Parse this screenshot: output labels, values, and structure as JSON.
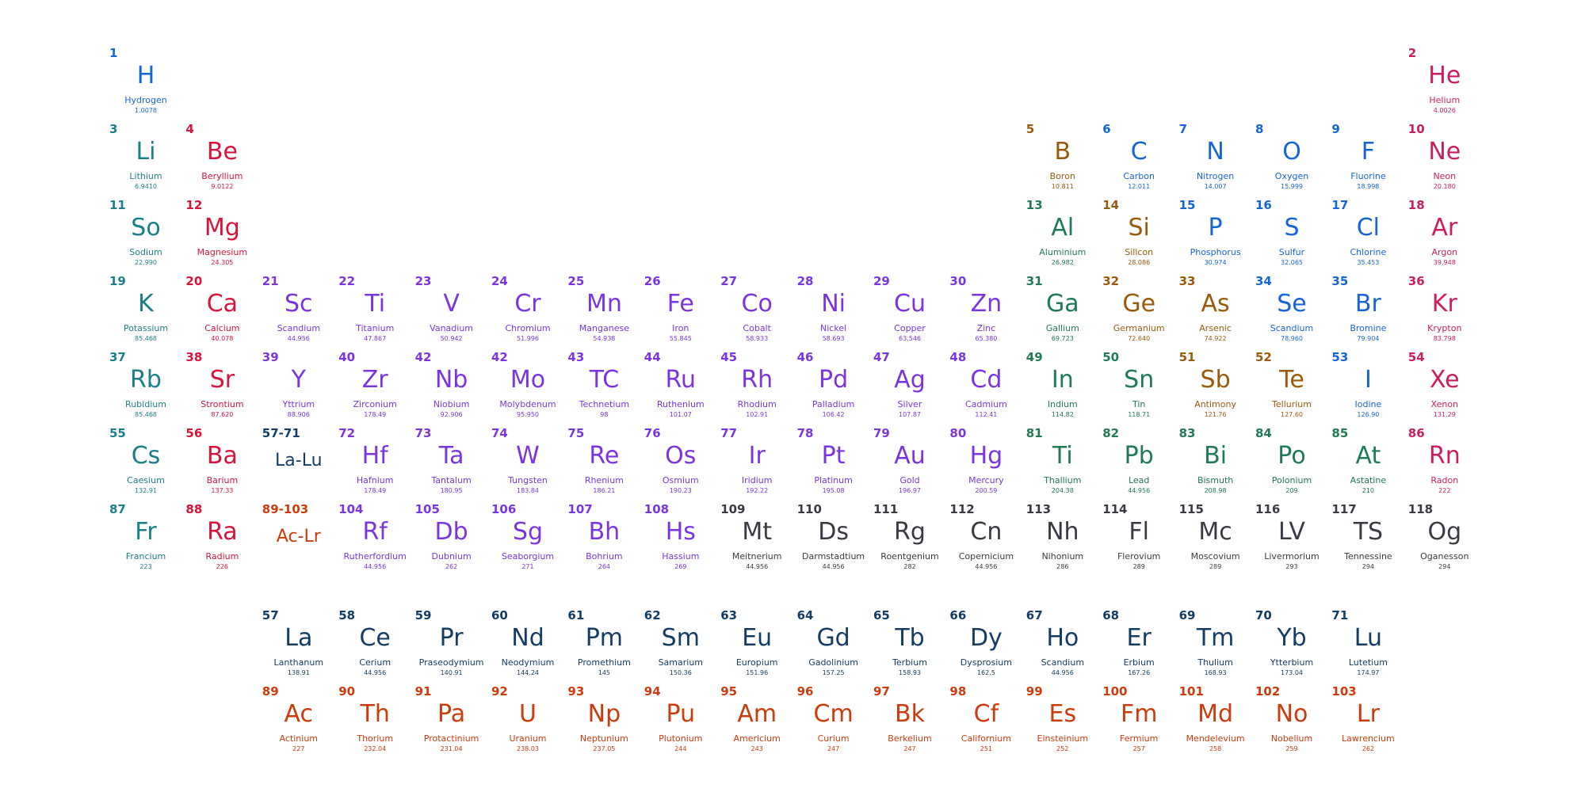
{
  "colors": {
    "alkali": "#1b7f8a",
    "alkaline": "#d6153c",
    "transition": "#7b35e0",
    "post_transition": "#1f7a55",
    "metalloid": "#9a5a0c",
    "nonmetal": "#1565d8",
    "noble": "#cc1e5d",
    "unknown": "#3a3a44",
    "lanthanide": "#143d66",
    "actinide": "#cc3b0c",
    "placeholder_lanth": "#143d66",
    "placeholder_act": "#cc3b0c"
  },
  "elements": [
    {
      "n": "1",
      "s": "H",
      "name": "Hydrogen",
      "m": "1.0078",
      "r": 0,
      "c": 0,
      "cat": "nonmetal"
    },
    {
      "n": "2",
      "s": "He",
      "name": "Helium",
      "m": "4.0026",
      "r": 0,
      "c": 17,
      "cat": "noble"
    },
    {
      "n": "3",
      "s": "Li",
      "name": "Lithium",
      "m": "6.9410",
      "r": 1,
      "c": 0,
      "cat": "alkali"
    },
    {
      "n": "4",
      "s": "Be",
      "name": "Beryllium",
      "m": "9.0122",
      "r": 1,
      "c": 1,
      "cat": "alkaline"
    },
    {
      "n": "5",
      "s": "B",
      "name": "Boron",
      "m": "10.811",
      "r": 1,
      "c": 12,
      "cat": "metalloid"
    },
    {
      "n": "6",
      "s": "C",
      "name": "Carbon",
      "m": "12.011",
      "r": 1,
      "c": 13,
      "cat": "nonmetal"
    },
    {
      "n": "7",
      "s": "N",
      "name": "Nitrogen",
      "m": "14.007",
      "r": 1,
      "c": 14,
      "cat": "nonmetal"
    },
    {
      "n": "8",
      "s": "O",
      "name": "Oxygen",
      "m": "15.999",
      "r": 1,
      "c": 15,
      "cat": "nonmetal"
    },
    {
      "n": "9",
      "s": "F",
      "name": "Fluorine",
      "m": "18.998",
      "r": 1,
      "c": 16,
      "cat": "nonmetal"
    },
    {
      "n": "10",
      "s": "Ne",
      "name": "Neon",
      "m": "20.180",
      "r": 1,
      "c": 17,
      "cat": "noble"
    },
    {
      "n": "11",
      "s": "So",
      "name": "Sodium",
      "m": "22.990",
      "r": 2,
      "c": 0,
      "cat": "alkali"
    },
    {
      "n": "12",
      "s": "Mg",
      "name": "Magnesium",
      "m": "24.305",
      "r": 2,
      "c": 1,
      "cat": "alkaline"
    },
    {
      "n": "13",
      "s": "Al",
      "name": "Aluminium",
      "m": "26.982",
      "r": 2,
      "c": 12,
      "cat": "post_transition"
    },
    {
      "n": "14",
      "s": "Si",
      "name": "Silicon",
      "m": "28.086",
      "r": 2,
      "c": 13,
      "cat": "metalloid"
    },
    {
      "n": "15",
      "s": "P",
      "name": "Phosphorus",
      "m": "30.974",
      "r": 2,
      "c": 14,
      "cat": "nonmetal"
    },
    {
      "n": "16",
      "s": "S",
      "name": "Sulfur",
      "m": "32.065",
      "r": 2,
      "c": 15,
      "cat": "nonmetal"
    },
    {
      "n": "17",
      "s": "Cl",
      "name": "Chlorine",
      "m": "35.453",
      "r": 2,
      "c": 16,
      "cat": "nonmetal"
    },
    {
      "n": "18",
      "s": "Ar",
      "name": "Argon",
      "m": "39.948",
      "r": 2,
      "c": 17,
      "cat": "noble"
    },
    {
      "n": "19",
      "s": "K",
      "name": "Potassium",
      "m": "85.468",
      "r": 3,
      "c": 0,
      "cat": "alkali"
    },
    {
      "n": "20",
      "s": "Ca",
      "name": "Calcium",
      "m": "40.078",
      "r": 3,
      "c": 1,
      "cat": "alkaline"
    },
    {
      "n": "21",
      "s": "Sc",
      "name": "Scandium",
      "m": "44.956",
      "r": 3,
      "c": 2,
      "cat": "transition"
    },
    {
      "n": "22",
      "s": "Ti",
      "name": "Titanium",
      "m": "47.867",
      "r": 3,
      "c": 3,
      "cat": "transition"
    },
    {
      "n": "23",
      "s": "V",
      "name": "Vanadium",
      "m": "50.942",
      "r": 3,
      "c": 4,
      "cat": "transition"
    },
    {
      "n": "24",
      "s": "Cr",
      "name": "Chromium",
      "m": "51.996",
      "r": 3,
      "c": 5,
      "cat": "transition"
    },
    {
      "n": "25",
      "s": "Mn",
      "name": "Manganese",
      "m": "54.938",
      "r": 3,
      "c": 6,
      "cat": "transition"
    },
    {
      "n": "26",
      "s": "Fe",
      "name": "Iron",
      "m": "55.845",
      "r": 3,
      "c": 7,
      "cat": "transition"
    },
    {
      "n": "27",
      "s": "Co",
      "name": "Cobalt",
      "m": "58.933",
      "r": 3,
      "c": 8,
      "cat": "transition"
    },
    {
      "n": "28",
      "s": "Ni",
      "name": "Nickel",
      "m": "58.693",
      "r": 3,
      "c": 9,
      "cat": "transition"
    },
    {
      "n": "29",
      "s": "Cu",
      "name": "Copper",
      "m": "63.546",
      "r": 3,
      "c": 10,
      "cat": "transition"
    },
    {
      "n": "30",
      "s": "Zn",
      "name": "Zinc",
      "m": "65.380",
      "r": 3,
      "c": 11,
      "cat": "transition"
    },
    {
      "n": "31",
      "s": "Ga",
      "name": "Gallium",
      "m": "69.723",
      "r": 3,
      "c": 12,
      "cat": "post_transition"
    },
    {
      "n": "32",
      "s": "Ge",
      "name": "Germanium",
      "m": "72.640",
      "r": 3,
      "c": 13,
      "cat": "metalloid"
    },
    {
      "n": "33",
      "s": "As",
      "name": "Arsenic",
      "m": "74.922",
      "r": 3,
      "c": 14,
      "cat": "metalloid"
    },
    {
      "n": "34",
      "s": "Se",
      "name": "Scandium",
      "m": "78.960",
      "r": 3,
      "c": 15,
      "cat": "nonmetal"
    },
    {
      "n": "35",
      "s": "Br",
      "name": "Bromine",
      "m": "79.904",
      "r": 3,
      "c": 16,
      "cat": "nonmetal"
    },
    {
      "n": "36",
      "s": "Kr",
      "name": "Krypton",
      "m": "83.798",
      "r": 3,
      "c": 17,
      "cat": "noble"
    },
    {
      "n": "37",
      "s": "Rb",
      "name": "Rubidium",
      "m": "85.468",
      "r": 4,
      "c": 0,
      "cat": "alkali"
    },
    {
      "n": "38",
      "s": "Sr",
      "name": "Strontium",
      "m": "87.620",
      "r": 4,
      "c": 1,
      "cat": "alkaline"
    },
    {
      "n": "39",
      "s": "Y",
      "name": "Yttrium",
      "m": "88.906",
      "r": 4,
      "c": 2,
      "cat": "transition"
    },
    {
      "n": "40",
      "s": "Zr",
      "name": "Zirconium",
      "m": "178.49",
      "r": 4,
      "c": 3,
      "cat": "transition"
    },
    {
      "n": "42",
      "s": "Nb",
      "name": "Niobium",
      "m": "92.906",
      "r": 4,
      "c": 4,
      "cat": "transition"
    },
    {
      "n": "42",
      "s": "Mo",
      "name": "Molybdenum",
      "m": "95.950",
      "r": 4,
      "c": 5,
      "cat": "transition"
    },
    {
      "n": "43",
      "s": "TC",
      "name": "Technetium",
      "m": "98",
      "r": 4,
      "c": 6,
      "cat": "transition"
    },
    {
      "n": "44",
      "s": "Ru",
      "name": "Ruthenium",
      "m": "101.07",
      "r": 4,
      "c": 7,
      "cat": "transition"
    },
    {
      "n": "45",
      "s": "Rh",
      "name": "Rhodium",
      "m": "102.91",
      "r": 4,
      "c": 8,
      "cat": "transition"
    },
    {
      "n": "46",
      "s": "Pd",
      "name": "Palladium",
      "m": "106.42",
      "r": 4,
      "c": 9,
      "cat": "transition"
    },
    {
      "n": "47",
      "s": "Ag",
      "name": "Silver",
      "m": "107.87",
      "r": 4,
      "c": 10,
      "cat": "transition"
    },
    {
      "n": "48",
      "s": "Cd",
      "name": "Cadmium",
      "m": "112.41",
      "r": 4,
      "c": 11,
      "cat": "transition"
    },
    {
      "n": "49",
      "s": "In",
      "name": "Indium",
      "m": "114.82",
      "r": 4,
      "c": 12,
      "cat": "post_transition"
    },
    {
      "n": "50",
      "s": "Sn",
      "name": "Tin",
      "m": "118.71",
      "r": 4,
      "c": 13,
      "cat": "post_transition"
    },
    {
      "n": "51",
      "s": "Sb",
      "name": "Antimony",
      "m": "121.76",
      "r": 4,
      "c": 14,
      "cat": "metalloid"
    },
    {
      "n": "52",
      "s": "Te",
      "name": "Tellurium",
      "m": "127.60",
      "r": 4,
      "c": 15,
      "cat": "metalloid"
    },
    {
      "n": "53",
      "s": "I",
      "name": "Iodine",
      "m": "126.90",
      "r": 4,
      "c": 16,
      "cat": "nonmetal"
    },
    {
      "n": "54",
      "s": "Xe",
      "name": "Xenon",
      "m": "131.29",
      "r": 4,
      "c": 17,
      "cat": "noble"
    },
    {
      "n": "55",
      "s": "Cs",
      "name": "Caesium",
      "m": "132.91",
      "r": 5,
      "c": 0,
      "cat": "alkali"
    },
    {
      "n": "56",
      "s": "Ba",
      "name": "Barium",
      "m": "137.33",
      "r": 5,
      "c": 1,
      "cat": "alkaline"
    },
    {
      "n": "57-71",
      "s": "La-Lu",
      "name": "",
      "m": "",
      "r": 5,
      "c": 2,
      "cat": "placeholder_lanth",
      "small": true
    },
    {
      "n": "72",
      "s": "Hf",
      "name": "Hafnium",
      "m": "178.49",
      "r": 5,
      "c": 3,
      "cat": "transition"
    },
    {
      "n": "73",
      "s": "Ta",
      "name": "Tantalum",
      "m": "180.95",
      "r": 5,
      "c": 4,
      "cat": "transition"
    },
    {
      "n": "74",
      "s": "W",
      "name": "Tungsten",
      "m": "183.84",
      "r": 5,
      "c": 5,
      "cat": "transition"
    },
    {
      "n": "75",
      "s": "Re",
      "name": "Rhenium",
      "m": "186.21",
      "r": 5,
      "c": 6,
      "cat": "transition"
    },
    {
      "n": "76",
      "s": "Os",
      "name": "Osmium",
      "m": "190.23",
      "r": 5,
      "c": 7,
      "cat": "transition"
    },
    {
      "n": "77",
      "s": "Ir",
      "name": "Iridium",
      "m": "192.22",
      "r": 5,
      "c": 8,
      "cat": "transition"
    },
    {
      "n": "78",
      "s": "Pt",
      "name": "Platinum",
      "m": "195.08",
      "r": 5,
      "c": 9,
      "cat": "transition"
    },
    {
      "n": "79",
      "s": "Au",
      "name": "Gold",
      "m": "196.97",
      "r": 5,
      "c": 10,
      "cat": "transition"
    },
    {
      "n": "80",
      "s": "Hg",
      "name": "Mercury",
      "m": "200.59",
      "r": 5,
      "c": 11,
      "cat": "transition"
    },
    {
      "n": "81",
      "s": "Ti",
      "name": "Thallium",
      "m": "204.38",
      "r": 5,
      "c": 12,
      "cat": "post_transition"
    },
    {
      "n": "82",
      "s": "Pb",
      "name": "Lead",
      "m": "44.956",
      "r": 5,
      "c": 13,
      "cat": "post_transition"
    },
    {
      "n": "83",
      "s": "Bi",
      "name": "Bismuth",
      "m": "208.98",
      "r": 5,
      "c": 14,
      "cat": "post_transition"
    },
    {
      "n": "84",
      "s": "Po",
      "name": "Polonium",
      "m": "209",
      "r": 5,
      "c": 15,
      "cat": "post_transition"
    },
    {
      "n": "85",
      "s": "At",
      "name": "Astatine",
      "m": "210",
      "r": 5,
      "c": 16,
      "cat": "post_transition"
    },
    {
      "n": "86",
      "s": "Rn",
      "name": "Radon",
      "m": "222",
      "r": 5,
      "c": 17,
      "cat": "noble"
    },
    {
      "n": "87",
      "s": "Fr",
      "name": "Francium",
      "m": "223",
      "r": 6,
      "c": 0,
      "cat": "alkali"
    },
    {
      "n": "88",
      "s": "Ra",
      "name": "Radium",
      "m": "226",
      "r": 6,
      "c": 1,
      "cat": "alkaline"
    },
    {
      "n": "89-103",
      "s": "Ac-Lr",
      "name": "",
      "m": "",
      "r": 6,
      "c": 2,
      "cat": "placeholder_act",
      "small": true
    },
    {
      "n": "104",
      "s": "Rf",
      "name": "Rutherfordium",
      "m": "44.956",
      "r": 6,
      "c": 3,
      "cat": "transition"
    },
    {
      "n": "105",
      "s": "Db",
      "name": "Dubnium",
      "m": "262",
      "r": 6,
      "c": 4,
      "cat": "transition"
    },
    {
      "n": "106",
      "s": "Sg",
      "name": "Seaborgium",
      "m": "271",
      "r": 6,
      "c": 5,
      "cat": "transition"
    },
    {
      "n": "107",
      "s": "Bh",
      "name": "Bohrium",
      "m": "264",
      "r": 6,
      "c": 6,
      "cat": "transition"
    },
    {
      "n": "108",
      "s": "Hs",
      "name": "Hassium",
      "m": "269",
      "r": 6,
      "c": 7,
      "cat": "transition"
    },
    {
      "n": "109",
      "s": "Mt",
      "name": "Meitnerium",
      "m": "44.956",
      "r": 6,
      "c": 8,
      "cat": "unknown"
    },
    {
      "n": "110",
      "s": "Ds",
      "name": "Darmstadtium",
      "m": "44.956",
      "r": 6,
      "c": 9,
      "cat": "unknown"
    },
    {
      "n": "111",
      "s": "Rg",
      "name": "Roentgenium",
      "m": "282",
      "r": 6,
      "c": 10,
      "cat": "unknown"
    },
    {
      "n": "112",
      "s": "Cn",
      "name": "Copernicium",
      "m": "44.956",
      "r": 6,
      "c": 11,
      "cat": "unknown"
    },
    {
      "n": "113",
      "s": "Nh",
      "name": "Nihonium",
      "m": "286",
      "r": 6,
      "c": 12,
      "cat": "unknown"
    },
    {
      "n": "114",
      "s": "Fl",
      "name": "Flerovium",
      "m": "289",
      "r": 6,
      "c": 13,
      "cat": "unknown"
    },
    {
      "n": "115",
      "s": "Mc",
      "name": "Moscovium",
      "m": "289",
      "r": 6,
      "c": 14,
      "cat": "unknown"
    },
    {
      "n": "116",
      "s": "LV",
      "name": "Livermorium",
      "m": "293",
      "r": 6,
      "c": 15,
      "cat": "unknown"
    },
    {
      "n": "117",
      "s": "TS",
      "name": "Tennessine",
      "m": "294",
      "r": 6,
      "c": 16,
      "cat": "unknown"
    },
    {
      "n": "118",
      "s": "Og",
      "name": "Oganesson",
      "m": "294",
      "r": 6,
      "c": 17,
      "cat": "unknown"
    },
    {
      "n": "57",
      "s": "La",
      "name": "Lanthanum",
      "m": "138.91",
      "r": 7,
      "c": 2,
      "cat": "lanthanide"
    },
    {
      "n": "58",
      "s": "Ce",
      "name": "Cerium",
      "m": "44.956",
      "r": 7,
      "c": 3,
      "cat": "lanthanide"
    },
    {
      "n": "59",
      "s": "Pr",
      "name": "Praseodymium",
      "m": "140.91",
      "r": 7,
      "c": 4,
      "cat": "lanthanide"
    },
    {
      "n": "60",
      "s": "Nd",
      "name": "Neodymium",
      "m": "144.24",
      "r": 7,
      "c": 5,
      "cat": "lanthanide"
    },
    {
      "n": "61",
      "s": "Pm",
      "name": "Promethium",
      "m": "145",
      "r": 7,
      "c": 6,
      "cat": "lanthanide"
    },
    {
      "n": "62",
      "s": "Sm",
      "name": "Samarium",
      "m": "150.36",
      "r": 7,
      "c": 7,
      "cat": "lanthanide"
    },
    {
      "n": "63",
      "s": "Eu",
      "name": "Europium",
      "m": "151.96",
      "r": 7,
      "c": 8,
      "cat": "lanthanide"
    },
    {
      "n": "64",
      "s": "Gd",
      "name": "Gadolinium",
      "m": "157.25",
      "r": 7,
      "c": 9,
      "cat": "lanthanide"
    },
    {
      "n": "65",
      "s": "Tb",
      "name": "Terbium",
      "m": "158.93",
      "r": 7,
      "c": 10,
      "cat": "lanthanide"
    },
    {
      "n": "66",
      "s": "Dy",
      "name": "Dysprosium",
      "m": "162.5",
      "r": 7,
      "c": 11,
      "cat": "lanthanide"
    },
    {
      "n": "67",
      "s": "Ho",
      "name": "Scandium",
      "m": "44.956",
      "r": 7,
      "c": 12,
      "cat": "lanthanide"
    },
    {
      "n": "68",
      "s": "Er",
      "name": "Erbium",
      "m": "167.26",
      "r": 7,
      "c": 13,
      "cat": "lanthanide"
    },
    {
      "n": "69",
      "s": "Tm",
      "name": "Thulium",
      "m": "168.93",
      "r": 7,
      "c": 14,
      "cat": "lanthanide"
    },
    {
      "n": "70",
      "s": "Yb",
      "name": "Ytterbium",
      "m": "173.04",
      "r": 7,
      "c": 15,
      "cat": "lanthanide"
    },
    {
      "n": "71",
      "s": "Lu",
      "name": "Lutetium",
      "m": "174.97",
      "r": 7,
      "c": 16,
      "cat": "lanthanide"
    },
    {
      "n": "89",
      "s": "Ac",
      "name": "Actinium",
      "m": "227",
      "r": 8,
      "c": 2,
      "cat": "actinide"
    },
    {
      "n": "90",
      "s": "Th",
      "name": "Thorium",
      "m": "232.04",
      "r": 8,
      "c": 3,
      "cat": "actinide"
    },
    {
      "n": "91",
      "s": "Pa",
      "name": "Protactinium",
      "m": "231.04",
      "r": 8,
      "c": 4,
      "cat": "actinide"
    },
    {
      "n": "92",
      "s": "U",
      "name": "Uranium",
      "m": "238.03",
      "r": 8,
      "c": 5,
      "cat": "actinide"
    },
    {
      "n": "93",
      "s": "Np",
      "name": "Neptunium",
      "m": "237.05",
      "r": 8,
      "c": 6,
      "cat": "actinide"
    },
    {
      "n": "94",
      "s": "Pu",
      "name": "Plutonium",
      "m": "244",
      "r": 8,
      "c": 7,
      "cat": "actinide"
    },
    {
      "n": "95",
      "s": "Am",
      "name": "Americium",
      "m": "243",
      "r": 8,
      "c": 8,
      "cat": "actinide"
    },
    {
      "n": "96",
      "s": "Cm",
      "name": "Curium",
      "m": "247",
      "r": 8,
      "c": 9,
      "cat": "actinide"
    },
    {
      "n": "97",
      "s": "Bk",
      "name": "Berkelium",
      "m": "247",
      "r": 8,
      "c": 10,
      "cat": "actinide"
    },
    {
      "n": "98",
      "s": "Cf",
      "name": "Californium",
      "m": "251",
      "r": 8,
      "c": 11,
      "cat": "actinide"
    },
    {
      "n": "99",
      "s": "Es",
      "name": "Einsteinium",
      "m": "252",
      "r": 8,
      "c": 12,
      "cat": "actinide"
    },
    {
      "n": "100",
      "s": "Fm",
      "name": "Fermium",
      "m": "257",
      "r": 8,
      "c": 13,
      "cat": "actinide"
    },
    {
      "n": "101",
      "s": "Md",
      "name": "Mendelevium",
      "m": "258",
      "r": 8,
      "c": 14,
      "cat": "actinide"
    },
    {
      "n": "102",
      "s": "No",
      "name": "Nobelium",
      "m": "259",
      "r": 8,
      "c": 15,
      "cat": "actinide"
    },
    {
      "n": "103",
      "s": "Lr",
      "name": "Lawrencium",
      "m": "262",
      "r": 8,
      "c": 16,
      "cat": "actinide"
    }
  ]
}
